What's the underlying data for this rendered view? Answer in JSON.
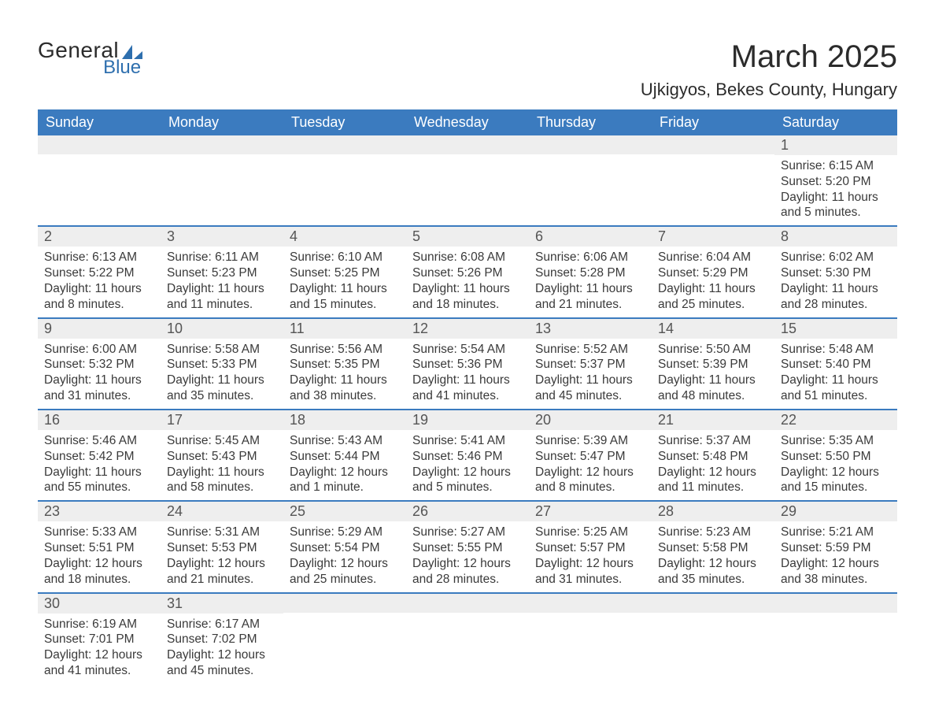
{
  "logo": {
    "text_general": "General",
    "text_blue": "Blue",
    "triangle_color": "#2e6fae"
  },
  "title": "March 2025",
  "location": "Ujkigyos, Bekes County, Hungary",
  "colors": {
    "header_bg": "#3b7bbf",
    "header_fg": "#ffffff",
    "daynum_bg": "#eeeeee",
    "row_border": "#3b7bbf",
    "text": "#3a3a3a",
    "background": "#ffffff"
  },
  "weekdays": [
    "Sunday",
    "Monday",
    "Tuesday",
    "Wednesday",
    "Thursday",
    "Friday",
    "Saturday"
  ],
  "weeks": [
    [
      null,
      null,
      null,
      null,
      null,
      null,
      {
        "n": "1",
        "sunrise": "6:15 AM",
        "sunset": "5:20 PM",
        "daylight": "11 hours and 5 minutes."
      }
    ],
    [
      {
        "n": "2",
        "sunrise": "6:13 AM",
        "sunset": "5:22 PM",
        "daylight": "11 hours and 8 minutes."
      },
      {
        "n": "3",
        "sunrise": "6:11 AM",
        "sunset": "5:23 PM",
        "daylight": "11 hours and 11 minutes."
      },
      {
        "n": "4",
        "sunrise": "6:10 AM",
        "sunset": "5:25 PM",
        "daylight": "11 hours and 15 minutes."
      },
      {
        "n": "5",
        "sunrise": "6:08 AM",
        "sunset": "5:26 PM",
        "daylight": "11 hours and 18 minutes."
      },
      {
        "n": "6",
        "sunrise": "6:06 AM",
        "sunset": "5:28 PM",
        "daylight": "11 hours and 21 minutes."
      },
      {
        "n": "7",
        "sunrise": "6:04 AM",
        "sunset": "5:29 PM",
        "daylight": "11 hours and 25 minutes."
      },
      {
        "n": "8",
        "sunrise": "6:02 AM",
        "sunset": "5:30 PM",
        "daylight": "11 hours and 28 minutes."
      }
    ],
    [
      {
        "n": "9",
        "sunrise": "6:00 AM",
        "sunset": "5:32 PM",
        "daylight": "11 hours and 31 minutes."
      },
      {
        "n": "10",
        "sunrise": "5:58 AM",
        "sunset": "5:33 PM",
        "daylight": "11 hours and 35 minutes."
      },
      {
        "n": "11",
        "sunrise": "5:56 AM",
        "sunset": "5:35 PM",
        "daylight": "11 hours and 38 minutes."
      },
      {
        "n": "12",
        "sunrise": "5:54 AM",
        "sunset": "5:36 PM",
        "daylight": "11 hours and 41 minutes."
      },
      {
        "n": "13",
        "sunrise": "5:52 AM",
        "sunset": "5:37 PM",
        "daylight": "11 hours and 45 minutes."
      },
      {
        "n": "14",
        "sunrise": "5:50 AM",
        "sunset": "5:39 PM",
        "daylight": "11 hours and 48 minutes."
      },
      {
        "n": "15",
        "sunrise": "5:48 AM",
        "sunset": "5:40 PM",
        "daylight": "11 hours and 51 minutes."
      }
    ],
    [
      {
        "n": "16",
        "sunrise": "5:46 AM",
        "sunset": "5:42 PM",
        "daylight": "11 hours and 55 minutes."
      },
      {
        "n": "17",
        "sunrise": "5:45 AM",
        "sunset": "5:43 PM",
        "daylight": "11 hours and 58 minutes."
      },
      {
        "n": "18",
        "sunrise": "5:43 AM",
        "sunset": "5:44 PM",
        "daylight": "12 hours and 1 minute."
      },
      {
        "n": "19",
        "sunrise": "5:41 AM",
        "sunset": "5:46 PM",
        "daylight": "12 hours and 5 minutes."
      },
      {
        "n": "20",
        "sunrise": "5:39 AM",
        "sunset": "5:47 PM",
        "daylight": "12 hours and 8 minutes."
      },
      {
        "n": "21",
        "sunrise": "5:37 AM",
        "sunset": "5:48 PM",
        "daylight": "12 hours and 11 minutes."
      },
      {
        "n": "22",
        "sunrise": "5:35 AM",
        "sunset": "5:50 PM",
        "daylight": "12 hours and 15 minutes."
      }
    ],
    [
      {
        "n": "23",
        "sunrise": "5:33 AM",
        "sunset": "5:51 PM",
        "daylight": "12 hours and 18 minutes."
      },
      {
        "n": "24",
        "sunrise": "5:31 AM",
        "sunset": "5:53 PM",
        "daylight": "12 hours and 21 minutes."
      },
      {
        "n": "25",
        "sunrise": "5:29 AM",
        "sunset": "5:54 PM",
        "daylight": "12 hours and 25 minutes."
      },
      {
        "n": "26",
        "sunrise": "5:27 AM",
        "sunset": "5:55 PM",
        "daylight": "12 hours and 28 minutes."
      },
      {
        "n": "27",
        "sunrise": "5:25 AM",
        "sunset": "5:57 PM",
        "daylight": "12 hours and 31 minutes."
      },
      {
        "n": "28",
        "sunrise": "5:23 AM",
        "sunset": "5:58 PM",
        "daylight": "12 hours and 35 minutes."
      },
      {
        "n": "29",
        "sunrise": "5:21 AM",
        "sunset": "5:59 PM",
        "daylight": "12 hours and 38 minutes."
      }
    ],
    [
      {
        "n": "30",
        "sunrise": "6:19 AM",
        "sunset": "7:01 PM",
        "daylight": "12 hours and 41 minutes."
      },
      {
        "n": "31",
        "sunrise": "6:17 AM",
        "sunset": "7:02 PM",
        "daylight": "12 hours and 45 minutes."
      },
      null,
      null,
      null,
      null,
      null
    ]
  ],
  "labels": {
    "sunrise": "Sunrise: ",
    "sunset": "Sunset: ",
    "daylight": "Daylight: "
  }
}
